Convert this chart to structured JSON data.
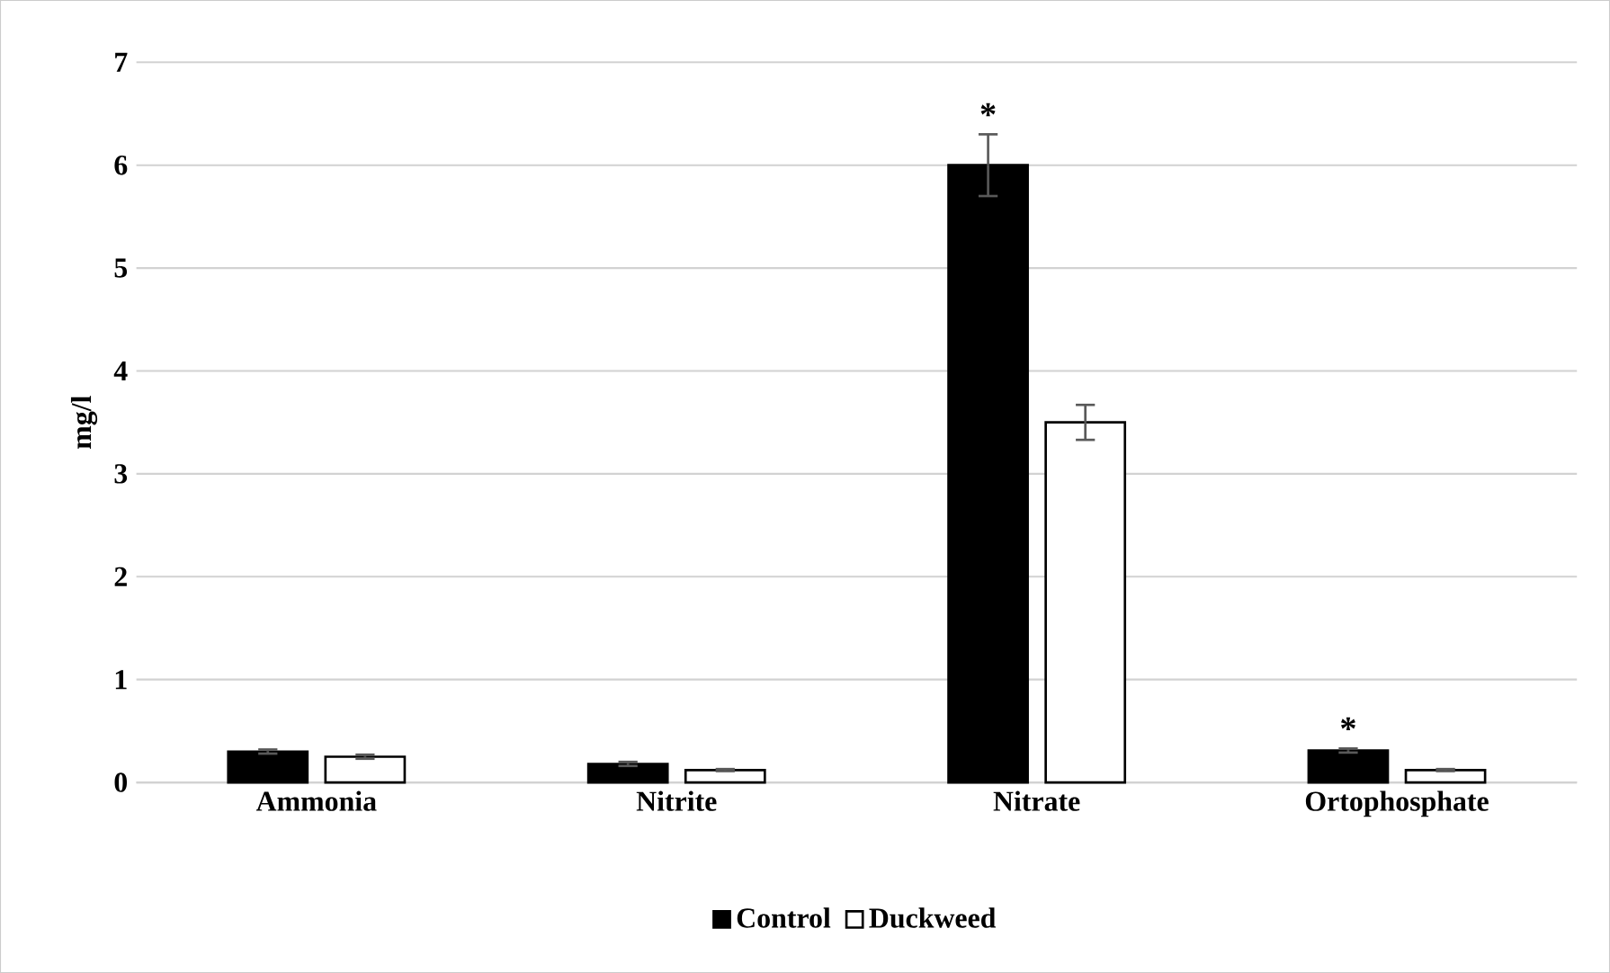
{
  "chart_data": {
    "type": "bar",
    "ylabel": "mg/l",
    "categories": [
      "Ammonia",
      "Nitrite",
      "Nitrate",
      "Ortophosphate"
    ],
    "series": [
      {
        "name": "Control",
        "color": "#000000",
        "values": [
          0.3,
          0.18,
          6.0,
          0.31
        ],
        "errors": [
          0.02,
          0.02,
          0.3,
          0.02
        ]
      },
      {
        "name": "Duckweed",
        "color": "#ffffff",
        "values": [
          0.25,
          0.12,
          3.5,
          0.12
        ],
        "errors": [
          0.02,
          0.01,
          0.17,
          0.01
        ]
      }
    ],
    "ylim": [
      0,
      7
    ],
    "yticks": [
      0,
      1,
      2,
      3,
      4,
      5,
      6,
      7
    ],
    "grid": "y",
    "legend": "bottom",
    "annotations": [
      "*",
      "*"
    ]
  }
}
